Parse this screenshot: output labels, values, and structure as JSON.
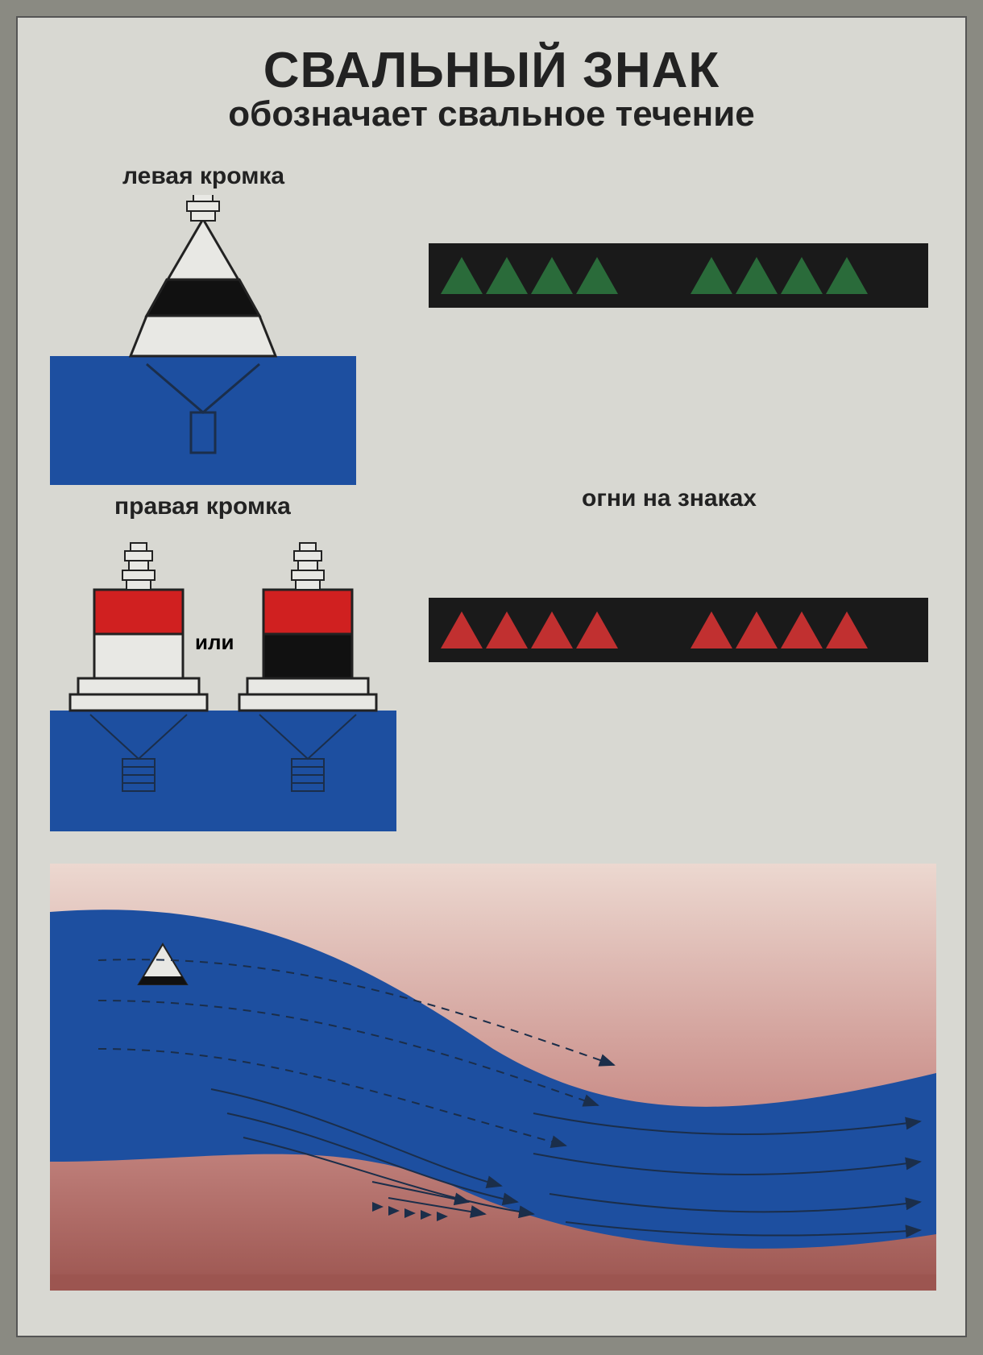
{
  "title": "СВАЛЬНЫЙ ЗНАК",
  "subtitle": "обозначает свальное течение",
  "labels": {
    "left_edge": "левая кромка",
    "right_edge": "правая кромка",
    "or": "или",
    "lights": "огни на знаках"
  },
  "colors": {
    "poster_bg": "#d8d8d2",
    "page_bg": "#8a8a82",
    "border": "#555555",
    "text": "#222222",
    "water": "#1d4fa0",
    "water_light": "#2f64b8",
    "strip_bg": "#1a1a1a",
    "green_light": "#2a6b3a",
    "red_light": "#c13030",
    "buoy_black": "#111111",
    "buoy_white": "#e8e8e4",
    "buoy_red": "#d02020",
    "buoy_stroke": "#222222",
    "bank_pink": "#c88a85",
    "bank_dark": "#9c5550",
    "flow_line": "#1b2e4a"
  },
  "lights": {
    "green": {
      "groups": [
        4,
        4
      ],
      "count_per_group": 4,
      "color": "#2a6b3a"
    },
    "red": {
      "groups": [
        4,
        4
      ],
      "count_per_group": 4,
      "color": "#c13030"
    }
  },
  "left_buoy": {
    "type": "conical",
    "body_colors_top_to_bottom": [
      "#e8e8e4",
      "#111111"
    ],
    "topmark": "stacked-cylinders"
  },
  "right_buoys": {
    "option_a": {
      "type": "cylindrical",
      "body_colors_top_to_bottom": [
        "#d02020",
        "#e8e8e4"
      ],
      "topmark": "stacked-cylinders"
    },
    "option_b": {
      "type": "cylindrical",
      "body_colors_top_to_bottom": [
        "#d02020",
        "#111111"
      ],
      "topmark": "stacked-cylinders"
    }
  },
  "river_diagram": {
    "water_color": "#1d4fa0",
    "bank_gradient": [
      "#ecd8d0",
      "#c88a85",
      "#9c5550"
    ],
    "buoy_marker": {
      "shape": "cone",
      "colors": [
        "#e8e8e4",
        "#111111"
      ]
    },
    "flow_arrow_color": "#1b2e4a",
    "flow_arrow_count_estimate": 18
  },
  "layout": {
    "poster_w": 1180,
    "poster_h": 1640,
    "title_fontsize": 62,
    "subtitle_fontsize": 44,
    "label_fontsize": 30,
    "strip_w": 620,
    "strip_h": 80,
    "triangle_base": 52,
    "triangle_height": 46
  }
}
